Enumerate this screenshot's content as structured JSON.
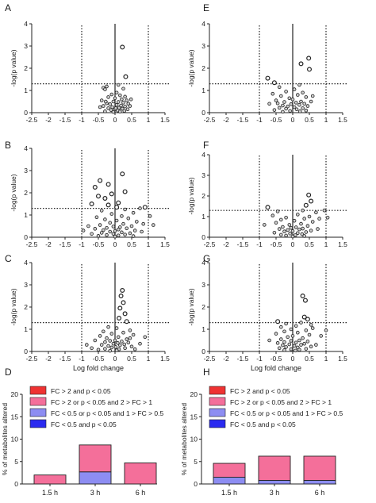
{
  "style": {
    "bar_pink": "#f46f9a",
    "bar_lavender": "#8d8df2",
    "legend_red": "#ef3232",
    "legend_blue": "#2a2af0"
  },
  "volcano_common": {
    "ylabel": "-log(p value)",
    "xlabel": "Log fold change",
    "x_ticks": [
      "-2.5",
      "-2",
      "-1.5",
      "-1",
      "-0.5",
      "0",
      "0.5",
      "1",
      "1.5"
    ],
    "y_ticks": [
      "0",
      "1",
      "2",
      "3",
      "4"
    ]
  },
  "chart_data": [
    {
      "panel": "A",
      "type": "scatter",
      "ylabel": "-log(p value)",
      "xlim": [
        -2.5,
        1.5
      ],
      "ylim": [
        0,
        4
      ],
      "ref_lines": {
        "x": [
          -1,
          1
        ],
        "y": 1.3
      },
      "points": [
        [
          0.22,
          2.95
        ],
        [
          0.32,
          1.62
        ],
        [
          -0.25,
          1.18
        ],
        [
          0.1,
          1.25
        ],
        [
          0.25,
          1.08
        ],
        [
          -0.35,
          1.12
        ],
        [
          -0.3,
          1.05
        ],
        [
          0.05,
          0.9
        ],
        [
          -0.1,
          0.82
        ],
        [
          0.15,
          0.78
        ],
        [
          0.3,
          0.72
        ],
        [
          -0.2,
          0.7
        ],
        [
          0.0,
          0.65
        ],
        [
          0.2,
          0.6
        ],
        [
          -0.4,
          0.55
        ],
        [
          0.35,
          0.55
        ],
        [
          -0.05,
          0.5
        ],
        [
          0.1,
          0.48
        ],
        [
          0.25,
          0.45
        ],
        [
          -0.25,
          0.42
        ],
        [
          0.4,
          0.4
        ],
        [
          -0.15,
          0.38
        ],
        [
          0.05,
          0.35
        ],
        [
          0.18,
          0.32
        ],
        [
          -0.35,
          0.3
        ],
        [
          0.3,
          0.28
        ],
        [
          -0.08,
          0.25
        ],
        [
          0.12,
          0.22
        ],
        [
          -0.2,
          0.2
        ],
        [
          0.22,
          0.18
        ],
        [
          0.0,
          0.15
        ],
        [
          -0.12,
          0.12
        ],
        [
          0.08,
          0.1
        ],
        [
          0.28,
          0.08
        ],
        [
          -0.3,
          0.06
        ],
        [
          0.15,
          0.05
        ],
        [
          -0.05,
          0.03
        ],
        [
          0.45,
          0.3
        ],
        [
          -0.45,
          0.25
        ],
        [
          0.02,
          0.2
        ],
        [
          0.38,
          0.15
        ],
        [
          -0.28,
          0.5
        ],
        [
          0.48,
          0.6
        ]
      ]
    },
    {
      "panel": "B",
      "type": "scatter",
      "ylabel": "-log(p value)",
      "xlim": [
        -2.5,
        1.5
      ],
      "ylim": [
        0,
        4
      ],
      "ref_lines": {
        "x": [
          -1,
          1
        ],
        "y": 1.3
      },
      "points": [
        [
          0.22,
          2.85
        ],
        [
          -0.45,
          2.55
        ],
        [
          -0.2,
          2.38
        ],
        [
          -0.6,
          2.25
        ],
        [
          0.3,
          2.05
        ],
        [
          -0.1,
          1.95
        ],
        [
          -0.5,
          1.85
        ],
        [
          -0.3,
          1.75
        ],
        [
          0.1,
          1.55
        ],
        [
          -0.7,
          1.5
        ],
        [
          -0.2,
          1.45
        ],
        [
          0.05,
          1.35
        ],
        [
          0.9,
          1.35
        ],
        [
          0.75,
          1.3
        ],
        [
          -0.4,
          1.2
        ],
        [
          0.3,
          1.25
        ],
        [
          0.55,
          1.1
        ],
        [
          -0.1,
          1.05
        ],
        [
          0.2,
          0.95
        ],
        [
          -0.55,
          0.9
        ],
        [
          0.4,
          0.85
        ],
        [
          -0.3,
          0.8
        ],
        [
          0.05,
          0.75
        ],
        [
          0.65,
          0.7
        ],
        [
          -0.15,
          0.65
        ],
        [
          0.25,
          0.6
        ],
        [
          -0.45,
          0.55
        ],
        [
          0.5,
          0.5
        ],
        [
          -0.05,
          0.48
        ],
        [
          0.15,
          0.45
        ],
        [
          -0.25,
          0.42
        ],
        [
          0.35,
          0.4
        ],
        [
          -0.6,
          0.38
        ],
        [
          0.1,
          0.35
        ],
        [
          -0.35,
          0.32
        ],
        [
          0.6,
          0.3
        ],
        [
          0.0,
          0.28
        ],
        [
          -0.15,
          0.25
        ],
        [
          0.2,
          0.22
        ],
        [
          -0.4,
          0.2
        ],
        [
          0.45,
          0.18
        ],
        [
          -0.05,
          0.15
        ],
        [
          0.3,
          0.12
        ],
        [
          -0.25,
          0.1
        ],
        [
          0.1,
          0.08
        ],
        [
          -0.5,
          0.06
        ],
        [
          0.55,
          0.05
        ],
        [
          0.0,
          0.03
        ],
        [
          0.85,
          0.6
        ],
        [
          1.05,
          0.95
        ],
        [
          1.15,
          0.55
        ],
        [
          -0.8,
          0.5
        ],
        [
          -0.95,
          0.3
        ],
        [
          0.8,
          0.25
        ],
        [
          -0.7,
          0.15
        ]
      ]
    },
    {
      "panel": "C",
      "type": "scatter",
      "ylabel": "-log(p value)",
      "xlim": [
        -2.5,
        1.5
      ],
      "ylim": [
        0,
        4
      ],
      "ref_lines": {
        "x": [
          -1,
          1
        ],
        "y": 1.3
      },
      "points": [
        [
          0.22,
          2.75
        ],
        [
          0.18,
          2.5
        ],
        [
          0.25,
          2.2
        ],
        [
          0.15,
          1.95
        ],
        [
          0.3,
          1.7
        ],
        [
          0.12,
          1.5
        ],
        [
          0.35,
          1.35
        ],
        [
          -0.2,
          1.1
        ],
        [
          0.05,
          1.05
        ],
        [
          0.45,
          0.95
        ],
        [
          -0.35,
          0.9
        ],
        [
          0.25,
          0.85
        ],
        [
          -0.1,
          0.8
        ],
        [
          0.55,
          0.75
        ],
        [
          -0.45,
          0.7
        ],
        [
          0.1,
          0.65
        ],
        [
          -0.25,
          0.6
        ],
        [
          0.35,
          0.55
        ],
        [
          0.0,
          0.5
        ],
        [
          -0.15,
          0.48
        ],
        [
          0.2,
          0.45
        ],
        [
          -0.3,
          0.42
        ],
        [
          0.4,
          0.4
        ],
        [
          0.08,
          0.38
        ],
        [
          -0.05,
          0.35
        ],
        [
          0.28,
          0.32
        ],
        [
          -0.4,
          0.3
        ],
        [
          0.15,
          0.28
        ],
        [
          -0.2,
          0.25
        ],
        [
          0.5,
          0.22
        ],
        [
          0.02,
          0.2
        ],
        [
          -0.1,
          0.18
        ],
        [
          0.3,
          0.15
        ],
        [
          -0.3,
          0.12
        ],
        [
          0.12,
          0.1
        ],
        [
          -0.5,
          0.08
        ],
        [
          0.6,
          0.1
        ],
        [
          0.05,
          0.05
        ],
        [
          -0.15,
          0.03
        ],
        [
          0.9,
          0.65
        ],
        [
          -0.85,
          0.3
        ],
        [
          -0.7,
          0.15
        ],
        [
          0.75,
          0.35
        ],
        [
          0.45,
          0.6
        ],
        [
          -0.6,
          0.5
        ]
      ]
    },
    {
      "panel": "D",
      "type": "bar",
      "stacked": true,
      "ylabel": "% of metabolites altered",
      "ylim": [
        0,
        20
      ],
      "categories": [
        "1.5 h",
        "3 h",
        "6 h"
      ],
      "series": [
        {
          "name": "FC > 2 and p < 0.05",
          "values": [
            0,
            0,
            0
          ]
        },
        {
          "name": "FC > 2 or p < 0.05 and 2 > FC > 1",
          "values": [
            2.0,
            6.0,
            4.7
          ]
        },
        {
          "name": "FC < 0.5 or p < 0.05 and 1 > FC > 0.5",
          "values": [
            0,
            2.7,
            0
          ]
        },
        {
          "name": "FC < 0.5 and p < 0.05",
          "values": [
            0,
            0,
            0
          ]
        }
      ],
      "y_ticks": [
        "0",
        "5",
        "10",
        "15",
        "20"
      ]
    },
    {
      "panel": "E",
      "type": "scatter",
      "ylabel": "-log(p value)",
      "xlim": [
        -2.5,
        1.5
      ],
      "ylim": [
        0,
        4
      ],
      "ref_lines": {
        "x": [
          -1,
          1
        ],
        "y": 1.3
      },
      "points": [
        [
          0.48,
          2.45
        ],
        [
          0.25,
          2.2
        ],
        [
          0.5,
          1.95
        ],
        [
          -0.75,
          1.55
        ],
        [
          -0.55,
          1.35
        ],
        [
          0.2,
          1.25
        ],
        [
          -0.4,
          1.15
        ],
        [
          0.05,
          1.05
        ],
        [
          -0.2,
          0.95
        ],
        [
          0.3,
          0.9
        ],
        [
          -0.6,
          0.85
        ],
        [
          0.15,
          0.8
        ],
        [
          -0.35,
          0.75
        ],
        [
          0.4,
          0.7
        ],
        [
          -0.1,
          0.65
        ],
        [
          0.0,
          0.6
        ],
        [
          -0.5,
          0.55
        ],
        [
          0.25,
          0.5
        ],
        [
          -0.25,
          0.48
        ],
        [
          0.1,
          0.45
        ],
        [
          -0.45,
          0.42
        ],
        [
          0.35,
          0.4
        ],
        [
          -0.05,
          0.38
        ],
        [
          0.2,
          0.35
        ],
        [
          -0.3,
          0.32
        ],
        [
          0.45,
          0.3
        ],
        [
          -0.15,
          0.28
        ],
        [
          0.05,
          0.25
        ],
        [
          -0.4,
          0.22
        ],
        [
          0.3,
          0.2
        ],
        [
          -0.2,
          0.18
        ],
        [
          0.12,
          0.15
        ],
        [
          -0.55,
          0.12
        ],
        [
          0.4,
          0.1
        ],
        [
          -0.08,
          0.08
        ],
        [
          0.22,
          0.06
        ],
        [
          -0.3,
          0.04
        ],
        [
          0.55,
          0.5
        ],
        [
          -0.7,
          0.4
        ],
        [
          0.6,
          0.75
        ]
      ]
    },
    {
      "panel": "F",
      "type": "scatter",
      "ylabel": "-log(p value)",
      "xlim": [
        -2.5,
        1.5
      ],
      "ylim": [
        0,
        4
      ],
      "ref_lines": {
        "x": [
          -1,
          1
        ],
        "y": 1.3
      },
      "points": [
        [
          0.48,
          2.05
        ],
        [
          0.55,
          1.75
        ],
        [
          0.4,
          1.55
        ],
        [
          -0.75,
          1.45
        ],
        [
          0.95,
          1.3
        ],
        [
          0.3,
          1.3
        ],
        [
          -0.45,
          1.25
        ],
        [
          0.7,
          1.2
        ],
        [
          0.15,
          1.1
        ],
        [
          -0.6,
          1.05
        ],
        [
          0.5,
          1.0
        ],
        [
          -0.2,
          0.95
        ],
        [
          0.35,
          0.9
        ],
        [
          -0.35,
          0.85
        ],
        [
          0.05,
          0.8
        ],
        [
          0.6,
          0.75
        ],
        [
          -0.5,
          0.7
        ],
        [
          0.25,
          0.65
        ],
        [
          -0.1,
          0.6
        ],
        [
          0.45,
          0.55
        ],
        [
          -0.3,
          0.5
        ],
        [
          0.1,
          0.48
        ],
        [
          -0.05,
          0.45
        ],
        [
          0.3,
          0.42
        ],
        [
          -0.4,
          0.4
        ],
        [
          0.2,
          0.38
        ],
        [
          -0.15,
          0.35
        ],
        [
          0.55,
          0.32
        ],
        [
          0.0,
          0.3
        ],
        [
          -0.25,
          0.28
        ],
        [
          0.4,
          0.25
        ],
        [
          -0.55,
          0.22
        ],
        [
          0.15,
          0.2
        ],
        [
          -0.08,
          0.18
        ],
        [
          0.28,
          0.15
        ],
        [
          -0.35,
          0.12
        ],
        [
          0.08,
          0.1
        ],
        [
          -0.2,
          0.08
        ],
        [
          0.35,
          0.06
        ],
        [
          0.0,
          0.04
        ],
        [
          0.8,
          0.9
        ],
        [
          1.05,
          0.95
        ],
        [
          -0.85,
          0.6
        ],
        [
          0.75,
          0.4
        ]
      ]
    },
    {
      "panel": "G",
      "type": "scatter",
      "ylabel": "-log(p value)",
      "xlim": [
        -2.5,
        1.5
      ],
      "ylim": [
        0,
        4
      ],
      "ref_lines": {
        "x": [
          -1,
          1
        ],
        "y": 1.3
      },
      "points": [
        [
          0.3,
          2.5
        ],
        [
          0.38,
          2.3
        ],
        [
          0.35,
          1.55
        ],
        [
          0.45,
          1.45
        ],
        [
          -0.45,
          1.35
        ],
        [
          0.25,
          1.3
        ],
        [
          -0.2,
          1.25
        ],
        [
          0.55,
          1.2
        ],
        [
          0.1,
          1.15
        ],
        [
          -0.35,
          1.1
        ],
        [
          0.6,
          1.05
        ],
        [
          -0.05,
          1.0
        ],
        [
          0.4,
          0.95
        ],
        [
          -0.25,
          0.9
        ],
        [
          0.15,
          0.85
        ],
        [
          -0.5,
          0.8
        ],
        [
          0.5,
          0.75
        ],
        [
          0.0,
          0.7
        ],
        [
          -0.15,
          0.65
        ],
        [
          0.3,
          0.6
        ],
        [
          -0.35,
          0.55
        ],
        [
          0.2,
          0.5
        ],
        [
          -0.05,
          0.48
        ],
        [
          0.45,
          0.45
        ],
        [
          -0.25,
          0.42
        ],
        [
          0.1,
          0.4
        ],
        [
          -0.45,
          0.38
        ],
        [
          0.35,
          0.35
        ],
        [
          -0.1,
          0.32
        ],
        [
          0.25,
          0.3
        ],
        [
          -0.3,
          0.28
        ],
        [
          0.05,
          0.25
        ],
        [
          0.55,
          0.22
        ],
        [
          -0.2,
          0.2
        ],
        [
          0.15,
          0.18
        ],
        [
          -0.4,
          0.15
        ],
        [
          0.4,
          0.12
        ],
        [
          -0.05,
          0.1
        ],
        [
          0.2,
          0.08
        ],
        [
          -0.25,
          0.06
        ],
        [
          0.08,
          0.04
        ],
        [
          0.85,
          0.7
        ],
        [
          1.0,
          0.95
        ],
        [
          -0.7,
          0.5
        ],
        [
          0.7,
          0.3
        ]
      ]
    },
    {
      "panel": "H",
      "type": "bar",
      "stacked": true,
      "ylabel": "% of metabolites altered",
      "ylim": [
        0,
        20
      ],
      "categories": [
        "1.5 h",
        "3 h",
        "6 h"
      ],
      "series": [
        {
          "name": "FC > 2 and p < 0.05",
          "values": [
            0,
            0,
            0
          ]
        },
        {
          "name": "FC > 2 or p < 0.05 and 2 > FC > 1",
          "values": [
            3.1,
            5.4,
            5.4
          ]
        },
        {
          "name": "FC < 0.5 or p < 0.05 and 1 > FC > 0.5",
          "values": [
            1.5,
            0.8,
            0.8
          ]
        },
        {
          "name": "FC < 0.5 and p < 0.05",
          "values": [
            0,
            0,
            0
          ]
        }
      ],
      "y_ticks": [
        "0",
        "5",
        "10",
        "15",
        "20"
      ]
    }
  ]
}
